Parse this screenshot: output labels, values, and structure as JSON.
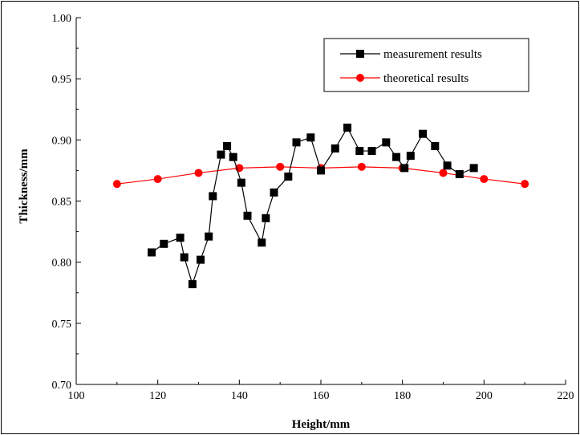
{
  "chart_data": {
    "type": "line",
    "title": "",
    "xlabel": "Height/mm",
    "ylabel": "Thickness/mm",
    "xlim": [
      100,
      220
    ],
    "ylim": [
      0.7,
      1.0
    ],
    "x_ticks": [
      "100",
      "120",
      "140",
      "160",
      "180",
      "200",
      "220"
    ],
    "y_ticks": [
      "0.70",
      "0.75",
      "0.80",
      "0.85",
      "0.90",
      "0.95",
      "1.00"
    ],
    "grid": false,
    "legend_position": "top-right",
    "series": [
      {
        "name": "measurement results",
        "color": "#000000",
        "marker": "square",
        "x": [
          118.5,
          121.5,
          125.5,
          126.5,
          128.5,
          130.5,
          132.5,
          133.5,
          135.5,
          137,
          138.5,
          140.5,
          142,
          145.5,
          146.5,
          148.5,
          152,
          154,
          157.5,
          160,
          163.5,
          166.5,
          169.5,
          172.5,
          176,
          178.5,
          180.5,
          182,
          185,
          188,
          191,
          194,
          197.5
        ],
        "y": [
          0.808,
          0.815,
          0.82,
          0.804,
          0.782,
          0.802,
          0.821,
          0.854,
          0.888,
          0.895,
          0.886,
          0.865,
          0.838,
          0.816,
          0.836,
          0.857,
          0.87,
          0.898,
          0.902,
          0.875,
          0.893,
          0.91,
          0.891,
          0.891,
          0.898,
          0.886,
          0.877,
          0.887,
          0.905,
          0.895,
          0.879,
          0.872,
          0.877
        ]
      },
      {
        "name": "theoretical results",
        "color": "#ff0000",
        "marker": "circle",
        "x": [
          110,
          120,
          130,
          140,
          150,
          160,
          170,
          180,
          190,
          200,
          210
        ],
        "y": [
          0.864,
          0.868,
          0.873,
          0.877,
          0.878,
          0.877,
          0.878,
          0.877,
          0.873,
          0.868,
          0.864
        ]
      }
    ]
  }
}
